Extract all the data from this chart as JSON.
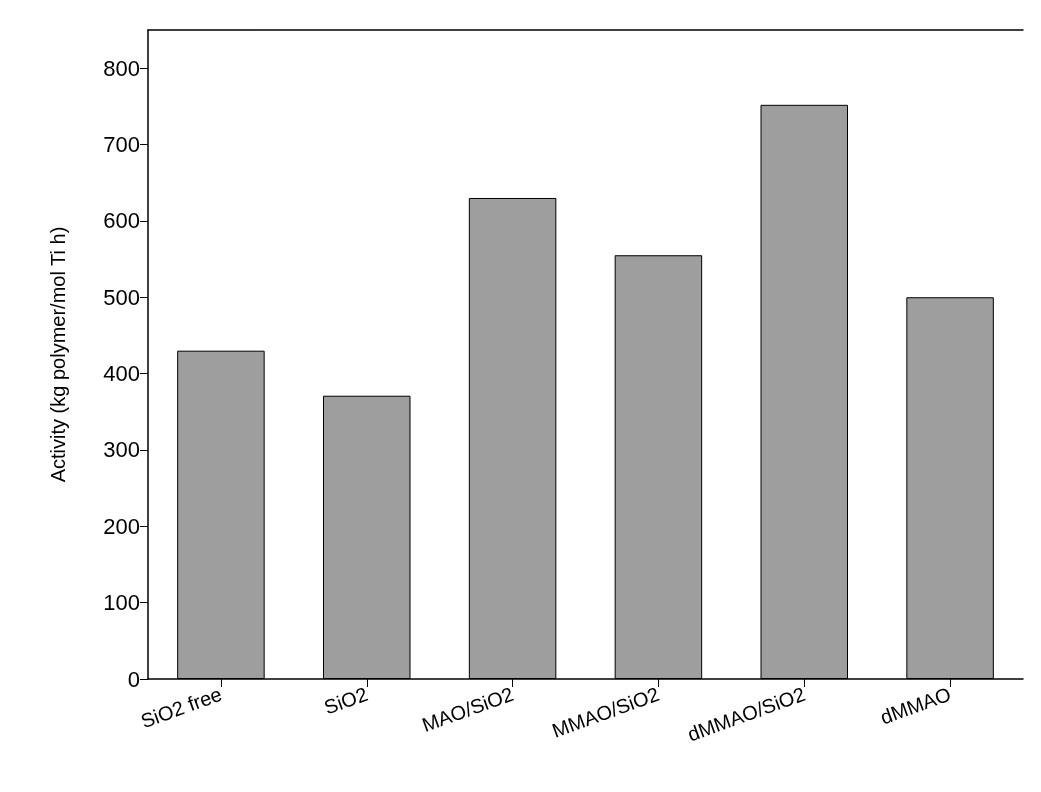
{
  "chart_data": {
    "type": "bar",
    "ylabel": "Activity (kg polymer/mol Ti h)",
    "categories": [
      "SiO2 free",
      "SiO2",
      "MAO/SiO2",
      "MMAO/SiO2",
      "dMMAO/SiO2",
      "dMMAO"
    ],
    "values": [
      430,
      371,
      630,
      555,
      752,
      500
    ],
    "color": "#9e9e9e",
    "ylim": [
      0,
      850
    ],
    "yticks": [
      0,
      100,
      200,
      300,
      400,
      500,
      600,
      700,
      800
    ],
    "grid": false
  }
}
